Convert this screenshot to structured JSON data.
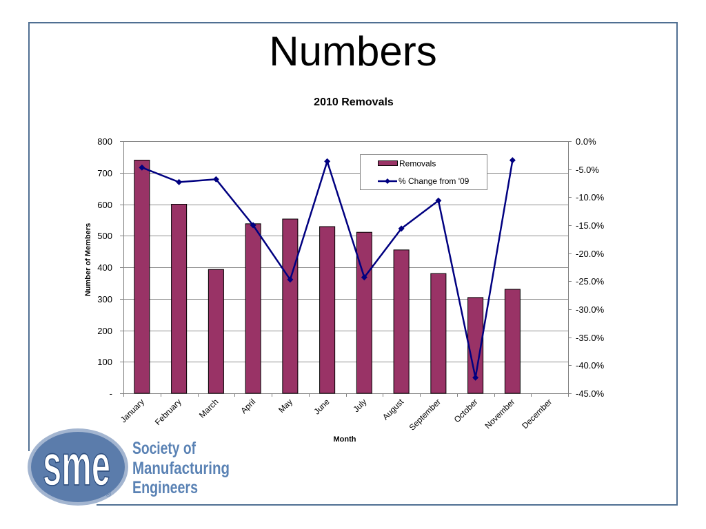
{
  "slide": {
    "title": "Numbers"
  },
  "colors": {
    "frame": "#4f6f92",
    "bars": "#993366",
    "line": "#000080",
    "logo_oval": "#5b7cab",
    "logo_ring": "#a3b5d0",
    "logo_text": "#5a82b4"
  },
  "chart_data": {
    "type": "bar",
    "title": "2010 Removals",
    "xlabel": "Month",
    "ylabel": "Number of Members",
    "categories": [
      "January",
      "February",
      "March",
      "April",
      "May",
      "June",
      "July",
      "August",
      "September",
      "October",
      "November",
      "December"
    ],
    "series": [
      {
        "name": "Removals",
        "type": "bar",
        "axis": "left",
        "values": [
          740,
          600,
          393,
          538,
          553,
          529,
          511,
          455,
          380,
          304,
          330,
          null
        ]
      },
      {
        "name": "% Change from '09",
        "type": "line",
        "axis": "right",
        "marker": "diamond",
        "values": [
          -4.7,
          -7.3,
          -6.8,
          -15.0,
          -24.7,
          -3.6,
          -24.3,
          -15.6,
          -10.6,
          -42.2,
          -3.4,
          null
        ]
      }
    ],
    "ylim": [
      0,
      800
    ],
    "y2lim": [
      -45,
      0
    ],
    "y_tick_labels": [
      "-",
      "100",
      "200",
      "300",
      "400",
      "500",
      "600",
      "700",
      "800"
    ],
    "y2_tick_labels": [
      "-45.0%",
      "-40.0%",
      "-35.0%",
      "-30.0%",
      "-25.0%",
      "-20.0%",
      "-15.0%",
      "-10.0%",
      "-5.0%",
      "0.0%"
    ],
    "grid": true,
    "legend": "inside-top-right"
  },
  "logo": {
    "mark": "sme",
    "registered": "®",
    "name_lines": [
      "Society of",
      "Manufacturing",
      "Engineers"
    ]
  }
}
